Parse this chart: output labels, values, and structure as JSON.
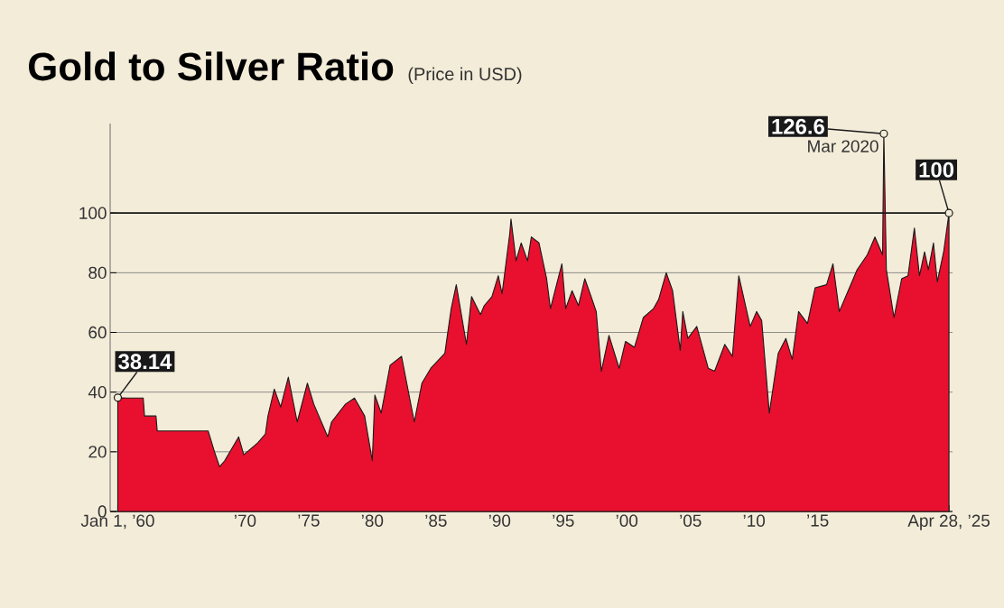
{
  "chart_data": {
    "type": "area",
    "title": "Gold to Silver Ratio",
    "subtitle": "(Price in USD)",
    "x": [
      1960.0,
      1960.7,
      1962.0,
      1962.1,
      1963.0,
      1963.1,
      1967.1,
      1967.6,
      1968.0,
      1968.4,
      1969.5,
      1969.9,
      1971.0,
      1971.6,
      1971.8,
      1972.3,
      1972.8,
      1973.4,
      1974.1,
      1974.9,
      1975.4,
      1976.5,
      1976.8,
      1977.9,
      1978.6,
      1979.4,
      1980.0,
      1980.2,
      1980.7,
      1981.4,
      1982.3,
      1983.3,
      1983.9,
      1984.6,
      1985.7,
      1986.2,
      1986.6,
      1987.4,
      1987.8,
      1988.5,
      1988.8,
      1989.4,
      1989.9,
      1990.2,
      1990.8,
      1990.9,
      1991.3,
      1991.7,
      1992.2,
      1992.5,
      1993.1,
      1993.7,
      1994.0,
      1994.9,
      1995.2,
      1995.7,
      1996.2,
      1996.7,
      1997.2,
      1997.6,
      1998.0,
      1998.6,
      1999.4,
      1999.9,
      2000.6,
      2001.3,
      2002.1,
      2002.5,
      2003.1,
      2003.6,
      2004.2,
      2004.4,
      2004.8,
      2005.5,
      2006.4,
      2006.9,
      2007.7,
      2008.3,
      2008.8,
      2009.7,
      2010.2,
      2010.6,
      2011.2,
      2011.9,
      2012.5,
      2013.0,
      2013.5,
      2014.2,
      2014.8,
      2015.7,
      2016.2,
      2016.7,
      2017.4,
      2018.1,
      2018.9,
      2019.5,
      2020.1,
      2020.2,
      2020.4,
      2021.0,
      2021.6,
      2022.1,
      2022.6,
      2023.0,
      2023.4,
      2023.7,
      2024.1,
      2024.4,
      2024.9,
      2025.32
    ],
    "series": [
      {
        "color": "#e8102e",
        "values": [
          38.14,
          38,
          38,
          32,
          32,
          27,
          27,
          20,
          15,
          17,
          25,
          19,
          23,
          26,
          32,
          41,
          35,
          45,
          30,
          43,
          36,
          25,
          30,
          36,
          38,
          32,
          17,
          39,
          33,
          49,
          52,
          30,
          43,
          48,
          53,
          68,
          76,
          56,
          72,
          66,
          69,
          72,
          79,
          73,
          93,
          98,
          84,
          90,
          84,
          92,
          90,
          78,
          68,
          83,
          68,
          74,
          69,
          78,
          72,
          67,
          47,
          59,
          48,
          57,
          55,
          65,
          68,
          71,
          80,
          74,
          54,
          67,
          58,
          62,
          48,
          47,
          56,
          52,
          79,
          62,
          67,
          64,
          33,
          53,
          58,
          51,
          67,
          63,
          75,
          76,
          83,
          67,
          74,
          81,
          86,
          92,
          86,
          126.6,
          81,
          65,
          78,
          79,
          95,
          79,
          87,
          81,
          90,
          77,
          87,
          100
        ]
      }
    ],
    "xlim": [
      1959.4,
      2025.6
    ],
    "ylim": [
      0,
      130
    ],
    "xticks": [
      {
        "value": 1960,
        "label": "Jan 1, ’60"
      },
      {
        "value": 1965,
        "label": null
      },
      {
        "value": 1970,
        "label": "’70"
      },
      {
        "value": 1975,
        "label": "’75"
      },
      {
        "value": 1980,
        "label": "’80"
      },
      {
        "value": 1985,
        "label": "’85"
      },
      {
        "value": 1990,
        "label": "’90"
      },
      {
        "value": 1995,
        "label": "’95"
      },
      {
        "value": 2000,
        "label": "’00"
      },
      {
        "value": 2005,
        "label": "’05"
      },
      {
        "value": 2010,
        "label": "’10"
      },
      {
        "value": 2015,
        "label": "’15"
      },
      {
        "value": 2020,
        "label": null
      },
      {
        "value": 2025.32,
        "label": "Apr 28, ’25"
      }
    ],
    "yticks": [
      0,
      20,
      40,
      60,
      80,
      100
    ],
    "grid": "y",
    "ref_lines": [
      {
        "axis": "y",
        "value": 100,
        "color": "#1a1a1a"
      }
    ],
    "annotations": [
      {
        "text": "38.14",
        "x": 1960.0,
        "y": 38.14
      },
      {
        "text": "126.6",
        "x": 2020.2,
        "y": 126.6
      },
      "Mar 2020",
      {
        "text": "100",
        "x": 2025.32,
        "y": 100
      }
    ]
  }
}
